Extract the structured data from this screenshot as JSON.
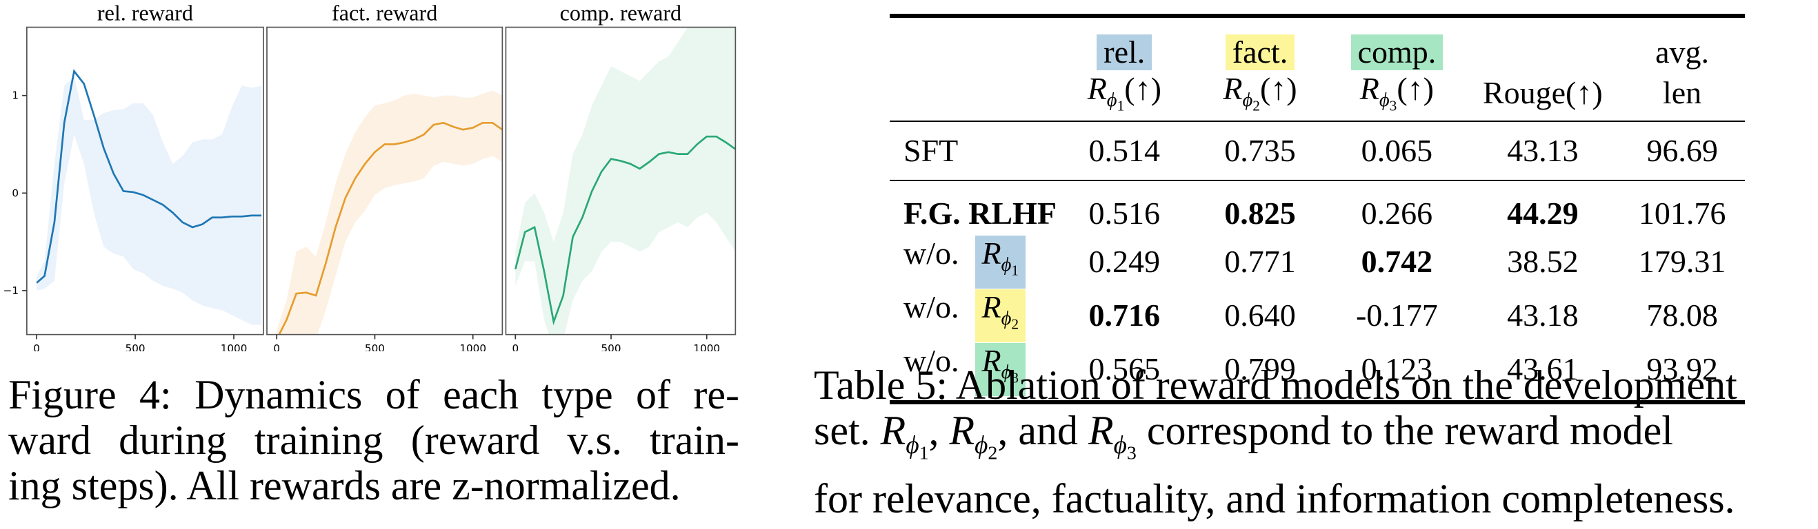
{
  "colors": {
    "rel": "#1f77b4",
    "fact": "#e69d2e",
    "comp": "#2aa876",
    "rel_bg": "#b3cfe4",
    "fact_bg": "#fdf59a",
    "comp_bg": "#a6e6c2"
  },
  "chart_data": [
    {
      "type": "line",
      "title": "rel. reward",
      "color": "#1f77b4",
      "band": "#eaf2fb",
      "xlim": [
        -50,
        1150
      ],
      "ylim": [
        -1.45,
        1.7
      ],
      "x_ticks": [
        0,
        500,
        1000
      ],
      "y_ticks": [
        -1,
        0,
        1
      ],
      "x": [
        0,
        40,
        90,
        140,
        190,
        240,
        290,
        340,
        390,
        440,
        490,
        540,
        590,
        640,
        690,
        740,
        790,
        840,
        890,
        940,
        990,
        1040,
        1090,
        1140
      ],
      "y": [
        -0.92,
        -0.85,
        -0.3,
        0.72,
        1.25,
        1.12,
        0.8,
        0.46,
        0.2,
        0.02,
        0.01,
        -0.02,
        -0.07,
        -0.12,
        -0.2,
        -0.3,
        -0.35,
        -0.32,
        -0.25,
        -0.25,
        -0.24,
        -0.24,
        -0.23,
        -0.23
      ],
      "upper": [
        -0.85,
        -0.7,
        0.3,
        1.1,
        1.2,
        0.75,
        0.75,
        0.82,
        0.85,
        0.86,
        0.92,
        0.92,
        0.8,
        0.52,
        0.3,
        0.38,
        0.52,
        0.55,
        0.55,
        0.6,
        0.88,
        1.1,
        1.08,
        1.1
      ],
      "lower": [
        -1.0,
        -0.98,
        -0.9,
        0.1,
        0.6,
        0.3,
        -0.2,
        -0.55,
        -0.62,
        -0.65,
        -0.78,
        -0.82,
        -0.9,
        -0.95,
        -0.98,
        -1.02,
        -1.1,
        -1.15,
        -1.18,
        -1.2,
        -1.25,
        -1.3,
        -1.35,
        -1.35
      ]
    },
    {
      "type": "line",
      "title": "fact. reward",
      "color": "#e69d2e",
      "band": "#fdf1e4",
      "xlim": [
        -50,
        1150
      ],
      "ylim": [
        -1.45,
        1.7
      ],
      "x_ticks": [
        0,
        500,
        1000
      ],
      "y_ticks": [],
      "x": [
        0,
        50,
        100,
        150,
        200,
        250,
        300,
        350,
        400,
        450,
        500,
        550,
        600,
        650,
        700,
        750,
        800,
        850,
        900,
        950,
        1000,
        1050,
        1100,
        1150
      ],
      "y": [
        -1.5,
        -1.3,
        -1.03,
        -1.02,
        -1.05,
        -0.72,
        -0.35,
        -0.05,
        0.15,
        0.3,
        0.42,
        0.5,
        0.5,
        0.52,
        0.55,
        0.6,
        0.7,
        0.72,
        0.68,
        0.65,
        0.67,
        0.72,
        0.72,
        0.65
      ],
      "upper": [
        -1.4,
        -1.1,
        -0.6,
        -0.55,
        -0.65,
        -0.3,
        0.1,
        0.4,
        0.62,
        0.78,
        0.9,
        0.92,
        0.95,
        1.0,
        1.02,
        1.0,
        0.98,
        1.0,
        1.0,
        0.98,
        0.98,
        1.02,
        1.05,
        1.0
      ],
      "lower": [
        -1.6,
        -1.5,
        -1.45,
        -1.5,
        -1.5,
        -1.2,
        -0.85,
        -0.5,
        -0.3,
        -0.18,
        -0.02,
        0.05,
        0.08,
        0.1,
        0.12,
        0.15,
        0.28,
        0.32,
        0.3,
        0.28,
        0.3,
        0.35,
        0.38,
        0.32
      ]
    },
    {
      "type": "line",
      "title": "comp. reward",
      "color": "#2aa876",
      "band": "#eaf7f0",
      "xlim": [
        -50,
        1150
      ],
      "ylim": [
        -1.45,
        1.7
      ],
      "x_ticks": [
        0,
        500,
        1000
      ],
      "y_ticks": [],
      "x": [
        0,
        50,
        100,
        150,
        200,
        250,
        300,
        350,
        400,
        450,
        500,
        550,
        600,
        650,
        700,
        750,
        800,
        850,
        900,
        950,
        1000,
        1050,
        1100,
        1150
      ],
      "y": [
        -0.78,
        -0.4,
        -0.35,
        -0.8,
        -1.32,
        -1.05,
        -0.45,
        -0.25,
        0.02,
        0.22,
        0.35,
        0.33,
        0.3,
        0.25,
        0.32,
        0.4,
        0.42,
        0.4,
        0.4,
        0.5,
        0.58,
        0.58,
        0.52,
        0.45
      ],
      "upper": [
        -0.6,
        -0.1,
        0.0,
        -0.2,
        -0.5,
        -0.2,
        0.4,
        0.6,
        0.9,
        1.1,
        1.3,
        1.25,
        1.2,
        1.15,
        1.25,
        1.35,
        1.4,
        1.55,
        1.7,
        1.75,
        1.8,
        1.8,
        1.75,
        1.7
      ],
      "lower": [
        -0.95,
        -0.7,
        -0.7,
        -1.3,
        -1.6,
        -1.5,
        -1.1,
        -0.9,
        -0.8,
        -0.6,
        -0.5,
        -0.5,
        -0.55,
        -0.6,
        -0.55,
        -0.4,
        -0.35,
        -0.3,
        -0.35,
        -0.25,
        -0.2,
        -0.3,
        -0.45,
        -0.6
      ]
    }
  ],
  "figure_caption": {
    "line1": "Figure 4: Dynamics of each type of re-",
    "line2": "ward during training (reward v.s. train-",
    "line3": "ing steps). All rewards are z-normalized."
  },
  "table": {
    "header": {
      "rel": "rel.",
      "fact": "fact.",
      "comp": "comp.",
      "R": "R",
      "phi": "ϕ",
      "sub1": "1",
      "sub2": "2",
      "sub3": "3",
      "up": "(↑)",
      "rouge": "Rouge(↑)",
      "avg": "avg.",
      "len": "len"
    },
    "rows": [
      {
        "label": "SFT",
        "r1": "0.514",
        "r2": "0.735",
        "r3": "0.065",
        "rouge": "43.13",
        "len": "96.69"
      },
      {
        "label": "F.G. RLHF",
        "r1": "0.516",
        "r2": "0.825",
        "r3": "0.266",
        "rouge": "44.29",
        "len": "101.76"
      },
      {
        "label": "w/o.",
        "model_sub": "1",
        "r1": "0.249",
        "r2": "0.771",
        "r3": "0.742",
        "rouge": "38.52",
        "len": "179.31"
      },
      {
        "label": "w/o.",
        "model_sub": "2",
        "r1": "0.716",
        "r2": "0.640",
        "r3": "-0.177",
        "rouge": "43.18",
        "len": "78.08"
      },
      {
        "label": "w/o.",
        "model_sub": "3",
        "r1": "0.565",
        "r2": "0.799",
        "r3": "0.123",
        "rouge": "43.61",
        "len": "93.92"
      }
    ]
  },
  "table_caption": {
    "line1": "Table 5: Ablation of reward models on the development",
    "line2_a": "set. ",
    "line2_b": ", ",
    "line2_c": ", and ",
    "line2_d": " correspond to the reward model",
    "line3": "for relevance, factuality, and information completeness."
  }
}
